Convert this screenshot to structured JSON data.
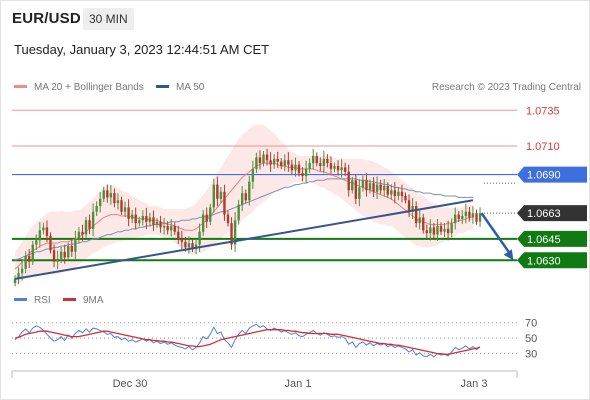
{
  "header": {
    "symbol": "EUR/USD",
    "timeframe": "30 MIN",
    "datetime": "Tuesday, January 3, 2023 12:44:51 AM CET"
  },
  "legend_main": [
    {
      "label": "MA 20 + Bollinger Bands",
      "color": "#f28b82"
    },
    {
      "label": "MA 50",
      "color": "#34568b"
    }
  ],
  "copyright": "Research © 2023 Trading Central",
  "legend_rsi": [
    {
      "label": "RSI",
      "color": "#4f7fd8"
    },
    {
      "label": "9MA",
      "color": "#d32f2f"
    }
  ],
  "colors": {
    "resistance": "#f09090",
    "pivot": "#3d6fe0",
    "support": "#127a12",
    "last": "#333333",
    "trendline": "#34568b",
    "candle_up": "#4f8f3a",
    "candle_down": "#b23a2a",
    "arrow": "#2d5fa8"
  },
  "chart_data": [
    {
      "type": "candlestick",
      "x_ticks": [
        "Dec 30",
        "Jan 1",
        "Jan 3"
      ],
      "ylim": [
        1.0612,
        1.0745
      ],
      "levels": [
        {
          "value": 1.0735,
          "label": "1.0735",
          "kind": "resistance"
        },
        {
          "value": 1.071,
          "label": "1.0710",
          "kind": "resistance"
        },
        {
          "value": 1.069,
          "label": "1.0690",
          "kind": "pivot"
        },
        {
          "value": 1.0663,
          "label": "1.0663",
          "kind": "last"
        },
        {
          "value": 1.0645,
          "label": "1.0645",
          "kind": "support"
        },
        {
          "value": 1.063,
          "label": "1.0630",
          "kind": "support"
        }
      ],
      "close": [
        1.0617,
        1.0621,
        1.0624,
        1.0633,
        1.0629,
        1.0641,
        1.0644,
        1.0651,
        1.0653,
        1.0647,
        1.0637,
        1.0629,
        1.0631,
        1.0636,
        1.0632,
        1.064,
        1.0636,
        1.0645,
        1.065,
        1.0648,
        1.0658,
        1.0652,
        1.0664,
        1.0668,
        1.0673,
        1.0679,
        1.0674,
        1.0677,
        1.067,
        1.0672,
        1.0664,
        1.0667,
        1.0659,
        1.0662,
        1.0656,
        1.0658,
        1.0661,
        1.0657,
        1.066,
        1.0655,
        1.0657,
        1.0653,
        1.0654,
        1.0651,
        1.0654,
        1.065,
        1.0645,
        1.0643,
        1.0639,
        1.0642,
        1.0638,
        1.0641,
        1.065,
        1.0662,
        1.0657,
        1.0667,
        1.0683,
        1.0673,
        1.0678,
        1.0662,
        1.0656,
        1.0641,
        1.0658,
        1.0669,
        1.0677,
        1.0672,
        1.0685,
        1.0694,
        1.0702,
        1.0698,
        1.0704,
        1.07,
        1.0697,
        1.0701,
        1.0699,
        1.0696,
        1.07,
        1.0697,
        1.0693,
        1.0697,
        1.0691,
        1.0689,
        1.0694,
        1.0698,
        1.0703,
        1.0698,
        1.0696,
        1.0701,
        1.0698,
        1.0694,
        1.0696,
        1.0693,
        1.0695,
        1.0692,
        1.0679,
        1.0686,
        1.0673,
        1.0681,
        1.0686,
        1.0679,
        1.0684,
        1.0678,
        1.0683,
        1.0679,
        1.0682,
        1.0676,
        1.0679,
        1.0675,
        1.0678,
        1.0675,
        1.0672,
        1.0664,
        1.0668,
        1.0656,
        1.066,
        1.0651,
        1.0649,
        1.0653,
        1.0648,
        1.0654,
        1.065,
        1.0652,
        1.0649,
        1.0656,
        1.0662,
        1.0659,
        1.0661,
        1.0664,
        1.066,
        1.0663,
        1.0657,
        1.0663
      ],
      "ma20": [
        1.0624,
        1.0626,
        1.0629,
        1.0632,
        1.0635,
        1.0637,
        1.0638,
        1.064,
        1.0641,
        1.0642,
        1.0642,
        1.0642,
        1.0642,
        1.0643,
        1.0643,
        1.0643,
        1.0644,
        1.0645,
        1.0646,
        1.0648,
        1.065,
        1.0652,
        1.0654,
        1.0656,
        1.0658,
        1.066,
        1.0661,
        1.0662,
        1.0662,
        1.0662,
        1.0661,
        1.0661,
        1.0661,
        1.066,
        1.066,
        1.0659,
        1.0659,
        1.0659,
        1.0658,
        1.0658,
        1.0658,
        1.0657,
        1.0656,
        1.0655,
        1.0655,
        1.0654,
        1.0653,
        1.0652,
        1.0651,
        1.0651,
        1.0651,
        1.0652,
        1.0654,
        1.0656,
        1.0658,
        1.0661,
        1.0664,
        1.0667,
        1.067,
        1.0673,
        1.0676,
        1.0679,
        1.0682,
        1.0685,
        1.0688,
        1.069,
        1.0692,
        1.0694,
        1.0696,
        1.0697,
        1.0698,
        1.0698,
        1.0698,
        1.0698,
        1.0697,
        1.0696,
        1.0696,
        1.0695,
        1.0695,
        1.0695,
        1.0694,
        1.0694,
        1.0694,
        1.0694,
        1.0694,
        1.0693,
        1.0692,
        1.0692,
        1.0691,
        1.069,
        1.0689,
        1.0688,
        1.0687,
        1.0686,
        1.0685,
        1.0684,
        1.0683,
        1.0682,
        1.0681,
        1.068,
        1.0679,
        1.0678,
        1.0677,
        1.0676,
        1.0675,
        1.0674,
        1.0673,
        1.0671,
        1.0669,
        1.0667,
        1.0665,
        1.0663,
        1.0661,
        1.0659,
        1.0658,
        1.0657,
        1.0656,
        1.0655,
        1.0655,
        1.0655,
        1.0655,
        1.0655,
        1.0656,
        1.0656,
        1.0657,
        1.0658,
        1.0658,
        1.0659,
        1.066,
        1.066
      ],
      "bb_width": [
        0.0012,
        0.0013,
        0.0014,
        0.0015,
        0.0016,
        0.0017,
        0.0018,
        0.0019,
        0.002,
        0.0021,
        0.0022,
        0.0022,
        0.0022,
        0.0022,
        0.0021,
        0.0021,
        0.002,
        0.002,
        0.0019,
        0.0019,
        0.0019,
        0.0019,
        0.0019,
        0.002,
        0.002,
        0.0021,
        0.0021,
        0.0021,
        0.002,
        0.0019,
        0.0018,
        0.0017,
        0.0016,
        0.0015,
        0.0014,
        0.0013,
        0.0012,
        0.0011,
        0.001,
        0.001,
        0.001,
        0.001,
        0.001,
        0.0011,
        0.0011,
        0.0012,
        0.0013,
        0.0014,
        0.0015,
        0.0016,
        0.0017,
        0.0018,
        0.0019,
        0.002,
        0.0021,
        0.0022,
        0.0023,
        0.0024,
        0.0025,
        0.0026,
        0.0027,
        0.0028,
        0.0029,
        0.003,
        0.003,
        0.003,
        0.003,
        0.003,
        0.0029,
        0.0028,
        0.0027,
        0.0025,
        0.0023,
        0.0021,
        0.0019,
        0.0017,
        0.0015,
        0.0013,
        0.0011,
        0.001,
        0.0009,
        0.0009,
        0.0009,
        0.0009,
        0.001,
        0.001,
        0.0011,
        0.0011,
        0.0012,
        0.0012,
        0.0013,
        0.0013,
        0.0014,
        0.0015,
        0.0016,
        0.0017,
        0.0018,
        0.0019,
        0.002,
        0.002,
        0.0021,
        0.0021,
        0.0021,
        0.0021,
        0.002,
        0.002,
        0.0019,
        0.0019,
        0.0019,
        0.0019,
        0.0019,
        0.0019,
        0.0019,
        0.0019,
        0.0018,
        0.0018,
        0.0017,
        0.0016,
        0.0015,
        0.0014,
        0.0013,
        0.0012,
        0.0011,
        0.001,
        0.001,
        0.0009,
        0.0009,
        0.0009,
        0.0009,
        0.0009,
        0.0009,
        0.0009
      ],
      "ma50": [
        1.063,
        1.0631,
        1.0632,
        1.0633,
        1.0634,
        1.0635,
        1.0636,
        1.0636,
        1.0637,
        1.0638,
        1.0638,
        1.0639,
        1.0639,
        1.064,
        1.064,
        1.0641,
        1.0641,
        1.0642,
        1.0642,
        1.0643,
        1.0643,
        1.0644,
        1.0645,
        1.0645,
        1.0646,
        1.0647,
        1.0648,
        1.0648,
        1.0649,
        1.065,
        1.065,
        1.0651,
        1.0651,
        1.0652,
        1.0652,
        1.0653,
        1.0653,
        1.0654,
        1.0654,
        1.0655,
        1.0655,
        1.0655,
        1.0656,
        1.0656,
        1.0657,
        1.0657,
        1.0657,
        1.0658,
        1.0658,
        1.0658,
        1.0659,
        1.0659,
        1.066,
        1.066,
        1.0661,
        1.0661,
        1.0662,
        1.0663,
        1.0664,
        1.0664,
        1.0665,
        1.0666,
        1.0667,
        1.0668,
        1.0669,
        1.067,
        1.0671,
        1.0672,
        1.0673,
        1.0674,
        1.0675,
        1.0676,
        1.0677,
        1.0678,
        1.0679,
        1.068,
        1.0681,
        1.0681,
        1.0682,
        1.0683,
        1.0683,
        1.0684,
        1.0684,
        1.0685,
        1.0685,
        1.0686,
        1.0686,
        1.0686,
        1.0687,
        1.0687,
        1.0687,
        1.0687,
        1.0687,
        1.0687,
        1.0687,
        1.0687,
        1.0687,
        1.0686,
        1.0686,
        1.0686,
        1.0685,
        1.0685,
        1.0684,
        1.0684,
        1.0683,
        1.0683,
        1.0682,
        1.0681,
        1.0681,
        1.068,
        1.068,
        1.0679,
        1.0679,
        1.0678,
        1.0678,
        1.0677,
        1.0677,
        1.0677,
        1.0676,
        1.0676,
        1.0676,
        1.0675,
        1.0675,
        1.0675,
        1.0675,
        1.0674,
        1.0674,
        1.0674,
        1.0674,
        1.0674
      ],
      "trendline": [
        {
          "i": 0,
          "y": 1.0617
        },
        {
          "i": 129,
          "y": 1.0672
        }
      ],
      "forecast_arrow": [
        {
          "i": 130,
          "y": 1.0663
        },
        {
          "i": 137,
          "y": 1.063
        }
      ]
    },
    {
      "type": "line",
      "y_ticks": [
        70,
        50,
        30
      ],
      "ylim": [
        10,
        80
      ],
      "series": [
        {
          "name": "RSI",
          "values": [
            48,
            52,
            58,
            62,
            57,
            63,
            66,
            64,
            60,
            55,
            50,
            46,
            48,
            52,
            47,
            54,
            50,
            56,
            60,
            57,
            62,
            58,
            63,
            62,
            60,
            58,
            55,
            56,
            51,
            52,
            48,
            50,
            46,
            48,
            45,
            47,
            49,
            46,
            48,
            44,
            46,
            43,
            45,
            42,
            44,
            41,
            39,
            38,
            36,
            39,
            35,
            38,
            44,
            52,
            49,
            55,
            64,
            56,
            58,
            48,
            44,
            38,
            48,
            55,
            60,
            56,
            63,
            66,
            68,
            64,
            66,
            62,
            60,
            63,
            61,
            58,
            60,
            57,
            55,
            57,
            53,
            52,
            55,
            57,
            60,
            56,
            54,
            57,
            55,
            52,
            53,
            51,
            52,
            50,
            42,
            45,
            38,
            43,
            45,
            41,
            44,
            40,
            43,
            41,
            43,
            39,
            41,
            38,
            40,
            38,
            36,
            32,
            35,
            28,
            31,
            27,
            26,
            29,
            26,
            30,
            28,
            29,
            27,
            32,
            38,
            35,
            37,
            40,
            36,
            39,
            35,
            39
          ]
        },
        {
          "name": "9MA",
          "values": [
            50,
            51,
            53,
            55,
            56,
            57,
            58,
            59,
            59,
            59,
            58,
            57,
            56,
            55,
            54,
            53,
            52,
            52,
            52,
            53,
            54,
            55,
            56,
            57,
            58,
            59,
            59,
            58,
            57,
            56,
            55,
            54,
            53,
            52,
            51,
            50,
            49,
            48,
            48,
            47,
            47,
            46,
            46,
            45,
            45,
            44,
            43,
            42,
            41,
            40,
            40,
            39,
            39,
            40,
            41,
            42,
            44,
            46,
            48,
            49,
            50,
            51,
            52,
            53,
            54,
            55,
            56,
            57,
            58,
            59,
            60,
            61,
            61,
            61,
            61,
            61,
            60,
            60,
            59,
            59,
            58,
            57,
            57,
            56,
            56,
            56,
            56,
            56,
            56,
            55,
            55,
            55,
            54,
            53,
            52,
            51,
            50,
            49,
            48,
            47,
            46,
            45,
            44,
            43,
            43,
            42,
            42,
            41,
            41,
            40,
            39,
            38,
            37,
            36,
            35,
            34,
            33,
            32,
            31,
            30,
            30,
            29,
            29,
            30,
            31,
            32,
            33,
            34,
            35,
            36,
            37,
            38
          ]
        }
      ],
      "reference_lines": [
        70,
        50,
        30
      ]
    }
  ]
}
